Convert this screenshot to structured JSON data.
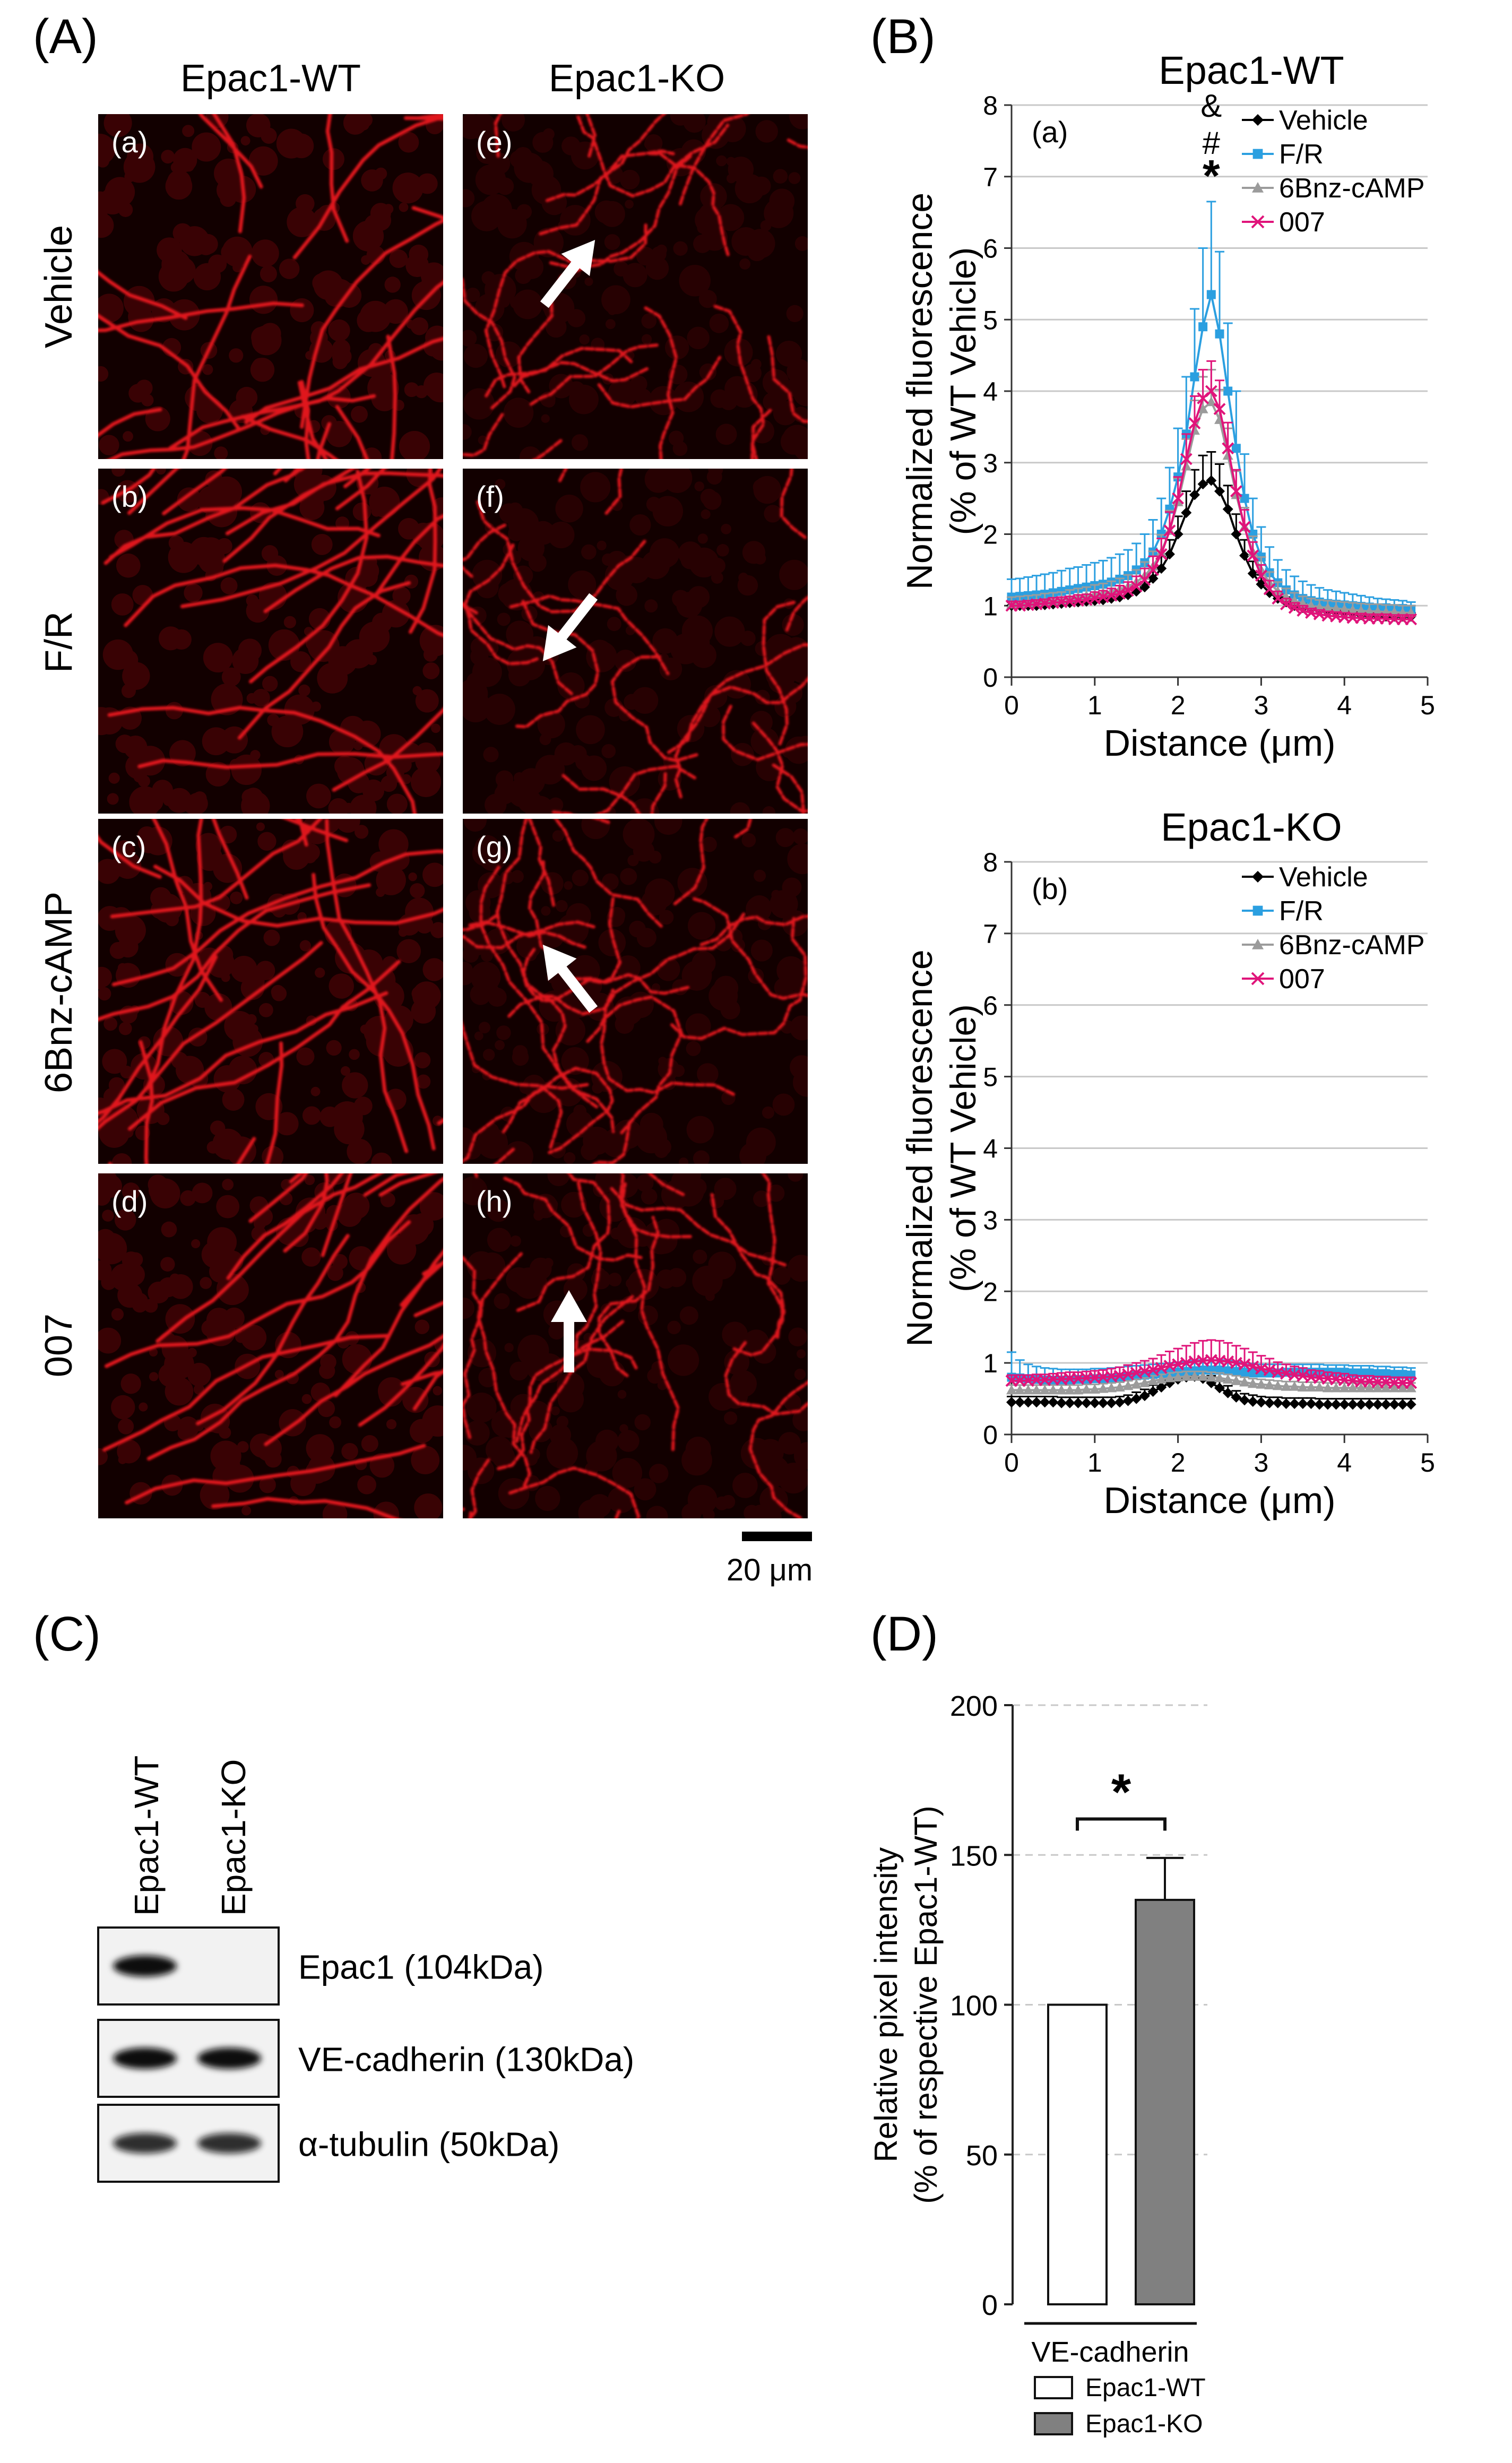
{
  "panelA": {
    "letter": "(A)",
    "col_headers": [
      "Epac1-WT",
      "Epac1-KO"
    ],
    "row_labels": [
      "Vehicle",
      "F/R",
      "6Bnz-cAMP",
      "007"
    ],
    "micrographs": [
      {
        "label": "(a)",
        "arrow": "none"
      },
      {
        "label": "(e)",
        "arrow": "up-right"
      },
      {
        "label": "(b)",
        "arrow": "none"
      },
      {
        "label": "(f)",
        "arrow": "down-left"
      },
      {
        "label": "(c)",
        "arrow": "none"
      },
      {
        "label": "(g)",
        "arrow": "up-left"
      },
      {
        "label": "(d)",
        "arrow": "none"
      },
      {
        "label": "(h)",
        "arrow": "up"
      }
    ],
    "scale_bar": "20 μm",
    "stain_color": "#e0141e"
  },
  "panelB": {
    "letter": "(B)"
  },
  "panelC": {
    "letter": "(C)",
    "lane_labels": [
      "Epac1-WT",
      "Epac1-KO"
    ],
    "blots": [
      {
        "label": "Epac1 (104kDa)",
        "band_intensity": [
          1.0,
          0.0
        ]
      },
      {
        "label": "VE-cadherin (130kDa)",
        "band_intensity": [
          1.0,
          1.0
        ]
      },
      {
        "label": "α-tubulin (50kDa)",
        "band_intensity": [
          0.85,
          0.85
        ]
      }
    ]
  },
  "panelD": {
    "letter": "(D)"
  },
  "colors": {
    "vehicle": "#000000",
    "fr": "#2b9fe0",
    "bnz": "#9b9b9b",
    "c007": "#e0147a",
    "ko_bar": "#808080"
  },
  "chart_data": [
    {
      "type": "line",
      "panel": "(a)",
      "title": "Epac1-WT",
      "xlabel": "Distance (μm)",
      "ylabel": "Normalized fluorescence (% of WT Vehicle)",
      "xlim": [
        0,
        5
      ],
      "ylim": [
        0,
        8
      ],
      "xticks": [
        0,
        1,
        2,
        3,
        4,
        5
      ],
      "yticks": [
        0,
        1,
        2,
        3,
        4,
        5,
        6,
        7,
        8
      ],
      "grid": "horizontal",
      "legend": "top-right",
      "annotations": [
        "&",
        "#",
        "*"
      ],
      "x": [
        0,
        0.1,
        0.2,
        0.3,
        0.4,
        0.5,
        0.6,
        0.7,
        0.8,
        0.9,
        1.0,
        1.1,
        1.2,
        1.3,
        1.4,
        1.5,
        1.6,
        1.7,
        1.8,
        1.9,
        2.0,
        2.1,
        2.2,
        2.3,
        2.4,
        2.5,
        2.6,
        2.7,
        2.8,
        2.9,
        3.0,
        3.1,
        3.2,
        3.3,
        3.4,
        3.5,
        3.6,
        3.7,
        3.8,
        3.9,
        4.0,
        4.1,
        4.2,
        4.3,
        4.4,
        4.5,
        4.6,
        4.7,
        4.8
      ],
      "series": [
        {
          "name": "Vehicle",
          "marker": "diamond",
          "values": [
            1.0,
            1.0,
            1.0,
            1.0,
            1.01,
            1.02,
            1.03,
            1.04,
            1.05,
            1.06,
            1.07,
            1.08,
            1.1,
            1.12,
            1.15,
            1.2,
            1.26,
            1.38,
            1.52,
            1.72,
            2.0,
            2.3,
            2.55,
            2.7,
            2.75,
            2.6,
            2.35,
            2.0,
            1.7,
            1.45,
            1.3,
            1.18,
            1.1,
            1.05,
            1.0,
            0.97,
            0.95,
            0.93,
            0.91,
            0.9,
            0.89,
            0.88,
            0.87,
            0.86,
            0.86,
            0.85,
            0.85,
            0.85,
            0.85
          ],
          "err": [
            0.05,
            0.05,
            0.05,
            0.05,
            0.05,
            0.05,
            0.06,
            0.06,
            0.06,
            0.06,
            0.07,
            0.07,
            0.08,
            0.08,
            0.09,
            0.1,
            0.12,
            0.14,
            0.17,
            0.2,
            0.25,
            0.3,
            0.35,
            0.4,
            0.4,
            0.38,
            0.33,
            0.28,
            0.22,
            0.17,
            0.13,
            0.1,
            0.08,
            0.07,
            0.06,
            0.06,
            0.05,
            0.05,
            0.05,
            0.05,
            0.05,
            0.05,
            0.05,
            0.05,
            0.05,
            0.05,
            0.05,
            0.05,
            0.05
          ]
        },
        {
          "name": "F/R",
          "marker": "square",
          "values": [
            1.12,
            1.13,
            1.14,
            1.15,
            1.16,
            1.18,
            1.2,
            1.22,
            1.24,
            1.26,
            1.28,
            1.3,
            1.33,
            1.37,
            1.42,
            1.5,
            1.6,
            1.75,
            2.0,
            2.35,
            2.8,
            3.4,
            4.2,
            4.9,
            5.35,
            4.8,
            4.0,
            3.2,
            2.5,
            2.0,
            1.68,
            1.46,
            1.32,
            1.22,
            1.15,
            1.1,
            1.07,
            1.05,
            1.03,
            1.02,
            1.01,
            1.0,
            0.99,
            0.98,
            0.97,
            0.97,
            0.96,
            0.96,
            0.95
          ],
          "err": [
            0.25,
            0.25,
            0.26,
            0.27,
            0.28,
            0.28,
            0.29,
            0.3,
            0.3,
            0.31,
            0.32,
            0.33,
            0.34,
            0.35,
            0.36,
            0.37,
            0.4,
            0.45,
            0.5,
            0.58,
            0.68,
            0.8,
            0.95,
            1.1,
            1.3,
            1.15,
            0.95,
            0.8,
            0.62,
            0.5,
            0.42,
            0.36,
            0.32,
            0.28,
            0.26,
            0.24,
            0.22,
            0.2,
            0.19,
            0.18,
            0.17,
            0.16,
            0.15,
            0.14,
            0.13,
            0.12,
            0.12,
            0.11,
            0.1
          ]
        },
        {
          "name": "6Bnz-cAMP",
          "marker": "triangle",
          "values": [
            1.02,
            1.03,
            1.04,
            1.05,
            1.06,
            1.07,
            1.08,
            1.1,
            1.12,
            1.14,
            1.16,
            1.18,
            1.2,
            1.23,
            1.27,
            1.33,
            1.42,
            1.55,
            1.75,
            2.05,
            2.45,
            2.95,
            3.45,
            3.75,
            3.85,
            3.6,
            3.1,
            2.55,
            2.1,
            1.75,
            1.5,
            1.32,
            1.2,
            1.12,
            1.07,
            1.03,
            1.0,
            0.98,
            0.97,
            0.96,
            0.95,
            0.94,
            0.93,
            0.92,
            0.92,
            0.91,
            0.91,
            0.9,
            0.9
          ],
          "err": [
            0.1,
            0.1,
            0.1,
            0.1,
            0.11,
            0.11,
            0.11,
            0.12,
            0.12,
            0.12,
            0.13,
            0.13,
            0.14,
            0.15,
            0.16,
            0.17,
            0.19,
            0.21,
            0.24,
            0.28,
            0.33,
            0.38,
            0.42,
            0.45,
            0.45,
            0.42,
            0.38,
            0.33,
            0.27,
            0.22,
            0.18,
            0.15,
            0.13,
            0.12,
            0.11,
            0.1,
            0.1,
            0.1,
            0.1,
            0.1,
            0.1,
            0.1,
            0.1,
            0.1,
            0.1,
            0.1,
            0.1,
            0.1,
            0.1
          ]
        },
        {
          "name": "007",
          "marker": "x",
          "values": [
            1.0,
            1.0,
            1.01,
            1.02,
            1.03,
            1.04,
            1.05,
            1.06,
            1.07,
            1.08,
            1.1,
            1.12,
            1.14,
            1.17,
            1.21,
            1.27,
            1.36,
            1.5,
            1.72,
            2.05,
            2.5,
            3.05,
            3.55,
            3.9,
            4.0,
            3.75,
            3.2,
            2.6,
            2.1,
            1.7,
            1.42,
            1.23,
            1.1,
            1.02,
            0.97,
            0.93,
            0.9,
            0.88,
            0.86,
            0.85,
            0.84,
            0.83,
            0.83,
            0.82,
            0.82,
            0.82,
            0.81,
            0.81,
            0.81
          ],
          "err": [
            0.06,
            0.06,
            0.06,
            0.06,
            0.06,
            0.07,
            0.07,
            0.07,
            0.08,
            0.08,
            0.09,
            0.09,
            0.1,
            0.11,
            0.12,
            0.14,
            0.16,
            0.19,
            0.22,
            0.26,
            0.3,
            0.35,
            0.38,
            0.4,
            0.42,
            0.4,
            0.36,
            0.3,
            0.24,
            0.19,
            0.15,
            0.12,
            0.1,
            0.08,
            0.07,
            0.07,
            0.06,
            0.06,
            0.06,
            0.06,
            0.06,
            0.06,
            0.06,
            0.06,
            0.06,
            0.06,
            0.06,
            0.06,
            0.06
          ]
        }
      ]
    },
    {
      "type": "line",
      "panel": "(b)",
      "title": "Epac1-KO",
      "xlabel": "Distance (μm)",
      "ylabel": "Normalized fluorescence (% of WT Vehicle)",
      "xlim": [
        0,
        5
      ],
      "ylim": [
        0,
        8
      ],
      "xticks": [
        0,
        1,
        2,
        3,
        4,
        5
      ],
      "yticks": [
        0,
        1,
        2,
        3,
        4,
        5,
        6,
        7,
        8
      ],
      "grid": "horizontal",
      "legend": "top-right",
      "x": [
        0,
        0.1,
        0.2,
        0.3,
        0.4,
        0.5,
        0.6,
        0.7,
        0.8,
        0.9,
        1.0,
        1.1,
        1.2,
        1.3,
        1.4,
        1.5,
        1.6,
        1.7,
        1.8,
        1.9,
        2.0,
        2.1,
        2.2,
        2.3,
        2.4,
        2.5,
        2.6,
        2.7,
        2.8,
        2.9,
        3.0,
        3.1,
        3.2,
        3.3,
        3.4,
        3.5,
        3.6,
        3.7,
        3.8,
        3.9,
        4.0,
        4.1,
        4.2,
        4.3,
        4.4,
        4.5,
        4.6,
        4.7,
        4.8
      ],
      "series": [
        {
          "name": "Vehicle",
          "marker": "diamond",
          "values": [
            0.45,
            0.45,
            0.45,
            0.45,
            0.45,
            0.45,
            0.44,
            0.44,
            0.44,
            0.44,
            0.44,
            0.44,
            0.44,
            0.45,
            0.47,
            0.5,
            0.54,
            0.6,
            0.66,
            0.72,
            0.77,
            0.8,
            0.81,
            0.78,
            0.72,
            0.65,
            0.58,
            0.52,
            0.48,
            0.46,
            0.45,
            0.44,
            0.44,
            0.43,
            0.43,
            0.43,
            0.43,
            0.42,
            0.42,
            0.42,
            0.42,
            0.42,
            0.42,
            0.42,
            0.42,
            0.42,
            0.42,
            0.42,
            0.42
          ],
          "err": [
            0.08,
            0.08,
            0.08,
            0.08,
            0.08,
            0.08,
            0.08,
            0.08,
            0.08,
            0.08,
            0.08,
            0.08,
            0.08,
            0.08,
            0.08,
            0.09,
            0.09,
            0.09,
            0.1,
            0.1,
            0.1,
            0.1,
            0.1,
            0.1,
            0.1,
            0.1,
            0.1,
            0.09,
            0.09,
            0.09,
            0.08,
            0.08,
            0.08,
            0.08,
            0.08,
            0.08,
            0.08,
            0.08,
            0.08,
            0.08,
            0.08,
            0.08,
            0.08,
            0.08,
            0.08,
            0.08,
            0.08,
            0.08,
            0.08
          ]
        },
        {
          "name": "F/R",
          "marker": "square",
          "values": [
            0.8,
            0.79,
            0.78,
            0.77,
            0.76,
            0.76,
            0.76,
            0.76,
            0.77,
            0.77,
            0.78,
            0.78,
            0.79,
            0.8,
            0.81,
            0.82,
            0.83,
            0.84,
            0.85,
            0.86,
            0.87,
            0.88,
            0.89,
            0.9,
            0.9,
            0.9,
            0.89,
            0.88,
            0.87,
            0.86,
            0.86,
            0.86,
            0.86,
            0.87,
            0.87,
            0.87,
            0.87,
            0.87,
            0.87,
            0.87,
            0.87,
            0.86,
            0.86,
            0.86,
            0.85,
            0.85,
            0.84,
            0.84,
            0.83
          ],
          "err": [
            0.35,
            0.25,
            0.2,
            0.18,
            0.17,
            0.16,
            0.15,
            0.15,
            0.14,
            0.14,
            0.14,
            0.14,
            0.14,
            0.14,
            0.14,
            0.14,
            0.14,
            0.14,
            0.14,
            0.14,
            0.14,
            0.14,
            0.14,
            0.14,
            0.14,
            0.14,
            0.14,
            0.13,
            0.13,
            0.13,
            0.12,
            0.12,
            0.12,
            0.11,
            0.11,
            0.11,
            0.11,
            0.11,
            0.1,
            0.1,
            0.1,
            0.1,
            0.1,
            0.1,
            0.1,
            0.1,
            0.1,
            0.1,
            0.1
          ]
        },
        {
          "name": "6Bnz-cAMP",
          "marker": "triangle",
          "values": [
            0.62,
            0.62,
            0.62,
            0.62,
            0.62,
            0.62,
            0.62,
            0.62,
            0.62,
            0.63,
            0.63,
            0.64,
            0.65,
            0.66,
            0.68,
            0.7,
            0.72,
            0.75,
            0.77,
            0.79,
            0.8,
            0.81,
            0.81,
            0.81,
            0.8,
            0.79,
            0.77,
            0.75,
            0.73,
            0.71,
            0.7,
            0.69,
            0.68,
            0.67,
            0.67,
            0.66,
            0.66,
            0.66,
            0.65,
            0.65,
            0.65,
            0.65,
            0.65,
            0.65,
            0.65,
            0.65,
            0.65,
            0.65,
            0.65
          ],
          "err": [
            0.07,
            0.07,
            0.07,
            0.07,
            0.07,
            0.07,
            0.07,
            0.07,
            0.07,
            0.07,
            0.07,
            0.07,
            0.07,
            0.07,
            0.07,
            0.07,
            0.07,
            0.07,
            0.07,
            0.07,
            0.07,
            0.07,
            0.07,
            0.07,
            0.07,
            0.07,
            0.07,
            0.07,
            0.07,
            0.07,
            0.07,
            0.07,
            0.07,
            0.07,
            0.07,
            0.07,
            0.07,
            0.07,
            0.07,
            0.07,
            0.07,
            0.07,
            0.07,
            0.07,
            0.07,
            0.07,
            0.07,
            0.07,
            0.07
          ]
        },
        {
          "name": "007",
          "marker": "x",
          "values": [
            0.75,
            0.75,
            0.75,
            0.76,
            0.76,
            0.77,
            0.77,
            0.78,
            0.78,
            0.79,
            0.79,
            0.8,
            0.81,
            0.82,
            0.84,
            0.86,
            0.88,
            0.9,
            0.93,
            0.96,
            0.98,
            1.0,
            1.02,
            1.03,
            1.04,
            1.03,
            1.02,
            1.0,
            0.98,
            0.95,
            0.92,
            0.9,
            0.87,
            0.85,
            0.83,
            0.82,
            0.8,
            0.79,
            0.78,
            0.77,
            0.76,
            0.75,
            0.74,
            0.74,
            0.73,
            0.73,
            0.72,
            0.72,
            0.72
          ],
          "err": [
            0.08,
            0.08,
            0.08,
            0.08,
            0.08,
            0.08,
            0.09,
            0.09,
            0.09,
            0.09,
            0.1,
            0.1,
            0.11,
            0.12,
            0.13,
            0.14,
            0.15,
            0.16,
            0.18,
            0.2,
            0.22,
            0.24,
            0.26,
            0.28,
            0.28,
            0.28,
            0.26,
            0.24,
            0.22,
            0.2,
            0.18,
            0.16,
            0.14,
            0.13,
            0.12,
            0.11,
            0.1,
            0.1,
            0.09,
            0.09,
            0.09,
            0.08,
            0.08,
            0.08,
            0.08,
            0.08,
            0.08,
            0.08,
            0.08
          ]
        }
      ]
    },
    {
      "type": "bar",
      "panel": "(D)",
      "categories": [
        "Epac1-WT",
        "Epac1-KO"
      ],
      "values": [
        100,
        135
      ],
      "errors": [
        0,
        14
      ],
      "group_label": "VE-cadherin",
      "ylabel": "Relative pixel intensity (% of respective Epac1-WT)",
      "ylim": [
        0,
        200
      ],
      "yticks": [
        0,
        50,
        100,
        150,
        200
      ],
      "grid": "horizontal-dashed",
      "legend": "bottom",
      "significance": "*"
    }
  ]
}
